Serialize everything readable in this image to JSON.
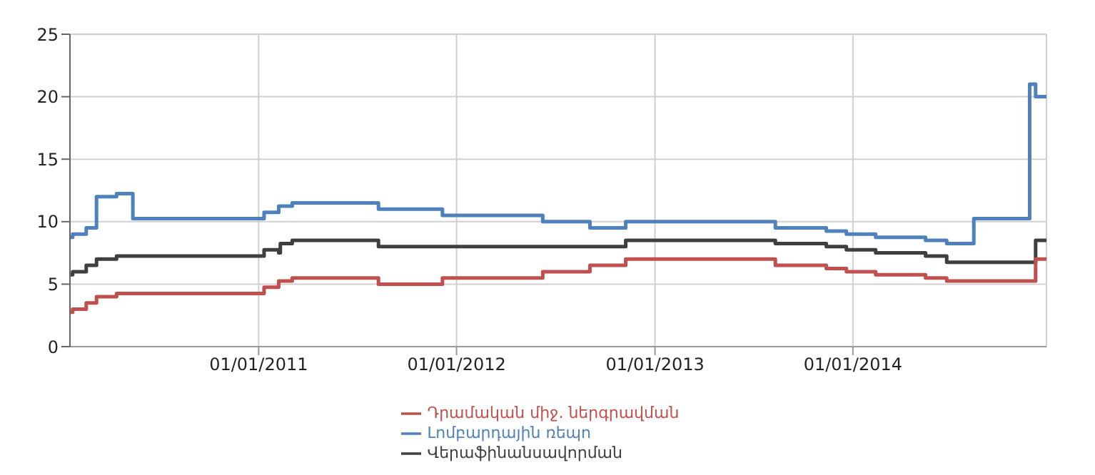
{
  "chart_data": {
    "type": "step",
    "xlim": [
      "2010-01-18",
      "2014-12-24"
    ],
    "xticks": [
      {
        "value": "2011-01-01",
        "label": "01/01/2011"
      },
      {
        "value": "2012-01-01",
        "label": "01/01/2012"
      },
      {
        "value": "2013-01-01",
        "label": "01/01/2013"
      },
      {
        "value": "2014-01-01",
        "label": "01/01/2014"
      }
    ],
    "ylim": [
      0,
      25
    ],
    "yticks": [
      0,
      5,
      10,
      15,
      20,
      25
    ],
    "grid": true,
    "legend": "bottom",
    "marker": "none",
    "line_style": "solid",
    "series": [
      {
        "name": "Վերաֆինանսավորման",
        "color": "#3f3f3f",
        "x": [
          "2010-01-18",
          "2010-01-23",
          "2010-02-17",
          "2010-03-08",
          "2010-04-14",
          "2011-01-11",
          "2011-02-07",
          "2011-02-10",
          "2011-03-04",
          "2011-08-10",
          "2012-11-08",
          "2013-08-11",
          "2013-11-13",
          "2013-12-20",
          "2014-02-12",
          "2014-05-15",
          "2014-06-23",
          "2014-12-04",
          "2014-12-24"
        ],
        "values": [
          5.75,
          6,
          6.5,
          7,
          7.25,
          7.75,
          7.5,
          8.25,
          8.5,
          8,
          8.5,
          8.25,
          8,
          7.75,
          7.5,
          7.25,
          6.75,
          8.5,
          8.5
        ]
      },
      {
        "name": "Լոմբարդային ռեպո",
        "color": "#4f81bd",
        "x": [
          "2010-01-18",
          "2010-01-23",
          "2010-02-17",
          "2010-03-08",
          "2010-04-14",
          "2010-05-14",
          "2011-01-11",
          "2011-02-07",
          "2011-03-04",
          "2011-08-10",
          "2011-12-06",
          "2012-06-08",
          "2012-09-03",
          "2012-11-08",
          "2013-08-11",
          "2013-11-13",
          "2013-12-20",
          "2014-02-12",
          "2014-05-15",
          "2014-06-23",
          "2014-08-12",
          "2014-11-23",
          "2014-12-04",
          "2014-12-24"
        ],
        "values": [
          8.75,
          9,
          9.5,
          12,
          12.25,
          10.25,
          10.75,
          11.25,
          11.5,
          11,
          10.5,
          10,
          9.5,
          10,
          9.5,
          9.25,
          9,
          8.75,
          8.5,
          8.25,
          10.25,
          21,
          20,
          20
        ]
      },
      {
        "name": "Դրամական միջ. ներգրավման",
        "color": "#c0504d",
        "x": [
          "2010-01-18",
          "2010-01-23",
          "2010-02-17",
          "2010-03-08",
          "2010-04-14",
          "2011-01-11",
          "2011-02-07",
          "2011-03-04",
          "2011-08-10",
          "2011-12-06",
          "2012-06-08",
          "2012-09-03",
          "2012-11-08",
          "2013-08-11",
          "2013-11-13",
          "2013-12-20",
          "2014-02-12",
          "2014-05-15",
          "2014-06-23",
          "2014-12-04",
          "2014-12-24"
        ],
        "values": [
          2.75,
          3,
          3.5,
          4,
          4.25,
          4.75,
          5.25,
          5.5,
          5,
          5.5,
          6,
          6.5,
          7,
          6.5,
          6.25,
          6,
          5.75,
          5.5,
          5.25,
          7,
          7
        ]
      }
    ]
  }
}
